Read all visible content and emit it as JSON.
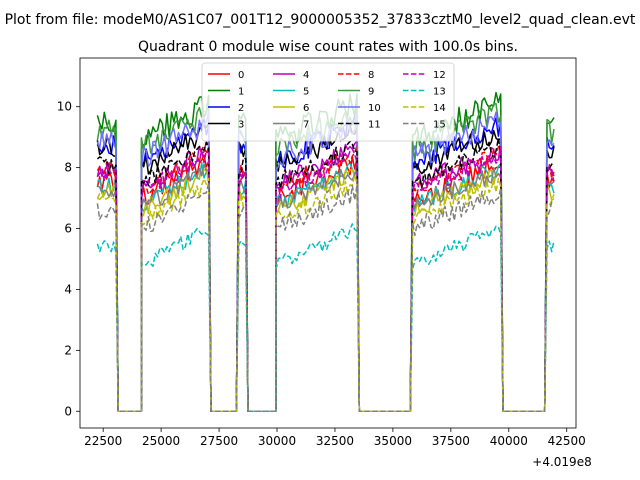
{
  "figure": {
    "suptitle": "Plot from file: modeM0/AS1C07_001T12_9000005352_37833cztM0_level2_quad_clean.evt",
    "offset_label": "+4.019e8"
  },
  "chart_data": {
    "type": "line",
    "title": "Quadrant 0 module wise count rates with 100.0s bins.",
    "xlabel": "",
    "ylabel": "",
    "x_offset": 401900000,
    "xlim": [
      21500,
      42900
    ],
    "ylim": [
      -0.55,
      11.6
    ],
    "x_ticks": [
      22500,
      25000,
      27500,
      30000,
      32500,
      35000,
      37500,
      40000,
      42500
    ],
    "x_tick_labels": [
      "22500",
      "25000",
      "27500",
      "30000",
      "32500",
      "35000",
      "37500",
      "40000",
      "42500"
    ],
    "y_ticks": [
      0,
      2,
      4,
      6,
      8,
      10
    ],
    "y_tick_labels": [
      "0",
      "2",
      "4",
      "6",
      "8",
      "10"
    ],
    "grid": false,
    "legend_position": "top-center",
    "legend_columns": 4,
    "segments": [
      {
        "start": 22250,
        "end": 23050
      },
      {
        "start": 24150,
        "end": 27050
      },
      {
        "start": 28350,
        "end": 28650
      },
      {
        "start": 29950,
        "end": 33450
      },
      {
        "start": 35850,
        "end": 39650
      },
      {
        "start": 41650,
        "end": 41950
      }
    ],
    "dropouts": [
      {
        "from": 23050,
        "zero_start": 23150,
        "zero_end": 24150
      },
      {
        "from": 27050,
        "zero_start": 27150,
        "zero_end": 28250
      },
      {
        "from": 28650,
        "zero_start": 28750,
        "zero_end": 29950
      },
      {
        "from": 33450,
        "zero_start": 33550,
        "zero_end": 35750
      },
      {
        "from": 39650,
        "zero_start": 39750,
        "zero_end": 41550
      }
    ],
    "series": [
      {
        "name": "0",
        "color": "#ff0000",
        "dash": "solid",
        "level": 7.6,
        "sd": 0.35
      },
      {
        "name": "1",
        "color": "#008000",
        "dash": "solid",
        "level": 9.5,
        "sd": 0.45
      },
      {
        "name": "2",
        "color": "#0000ff",
        "dash": "solid",
        "level": 8.8,
        "sd": 0.4
      },
      {
        "name": "3",
        "color": "#000000",
        "dash": "solid",
        "level": 8.6,
        "sd": 0.35
      },
      {
        "name": "4",
        "color": "#bf00bf",
        "dash": "solid",
        "level": 8.0,
        "sd": 0.35
      },
      {
        "name": "5",
        "color": "#00bfbf",
        "dash": "solid",
        "level": 7.4,
        "sd": 0.3
      },
      {
        "name": "6",
        "color": "#bfbf00",
        "dash": "solid",
        "level": 7.2,
        "sd": 0.3
      },
      {
        "name": "7",
        "color": "#808080",
        "dash": "solid",
        "level": 7.3,
        "sd": 0.3
      },
      {
        "name": "8",
        "color": "#ff0000",
        "dash": "dashed",
        "level": 7.9,
        "sd": 0.3
      },
      {
        "name": "9",
        "color": "#3c9a3c",
        "dash": "solid",
        "level": 9.2,
        "sd": 0.4
      },
      {
        "name": "10",
        "color": "#7070ff",
        "dash": "solid",
        "level": 8.9,
        "sd": 0.4
      },
      {
        "name": "11",
        "color": "#000000",
        "dash": "dashed",
        "level": 8.1,
        "sd": 0.3
      },
      {
        "name": "12",
        "color": "#bf00bf",
        "dash": "dashed",
        "level": 7.8,
        "sd": 0.3
      },
      {
        "name": "13",
        "color": "#00bfbf",
        "dash": "dashed",
        "level": 5.4,
        "sd": 0.25
      },
      {
        "name": "14",
        "color": "#bfbf00",
        "dash": "dashed",
        "level": 6.9,
        "sd": 0.3
      },
      {
        "name": "15",
        "color": "#808080",
        "dash": "dashed",
        "level": 6.6,
        "sd": 0.3
      }
    ]
  }
}
